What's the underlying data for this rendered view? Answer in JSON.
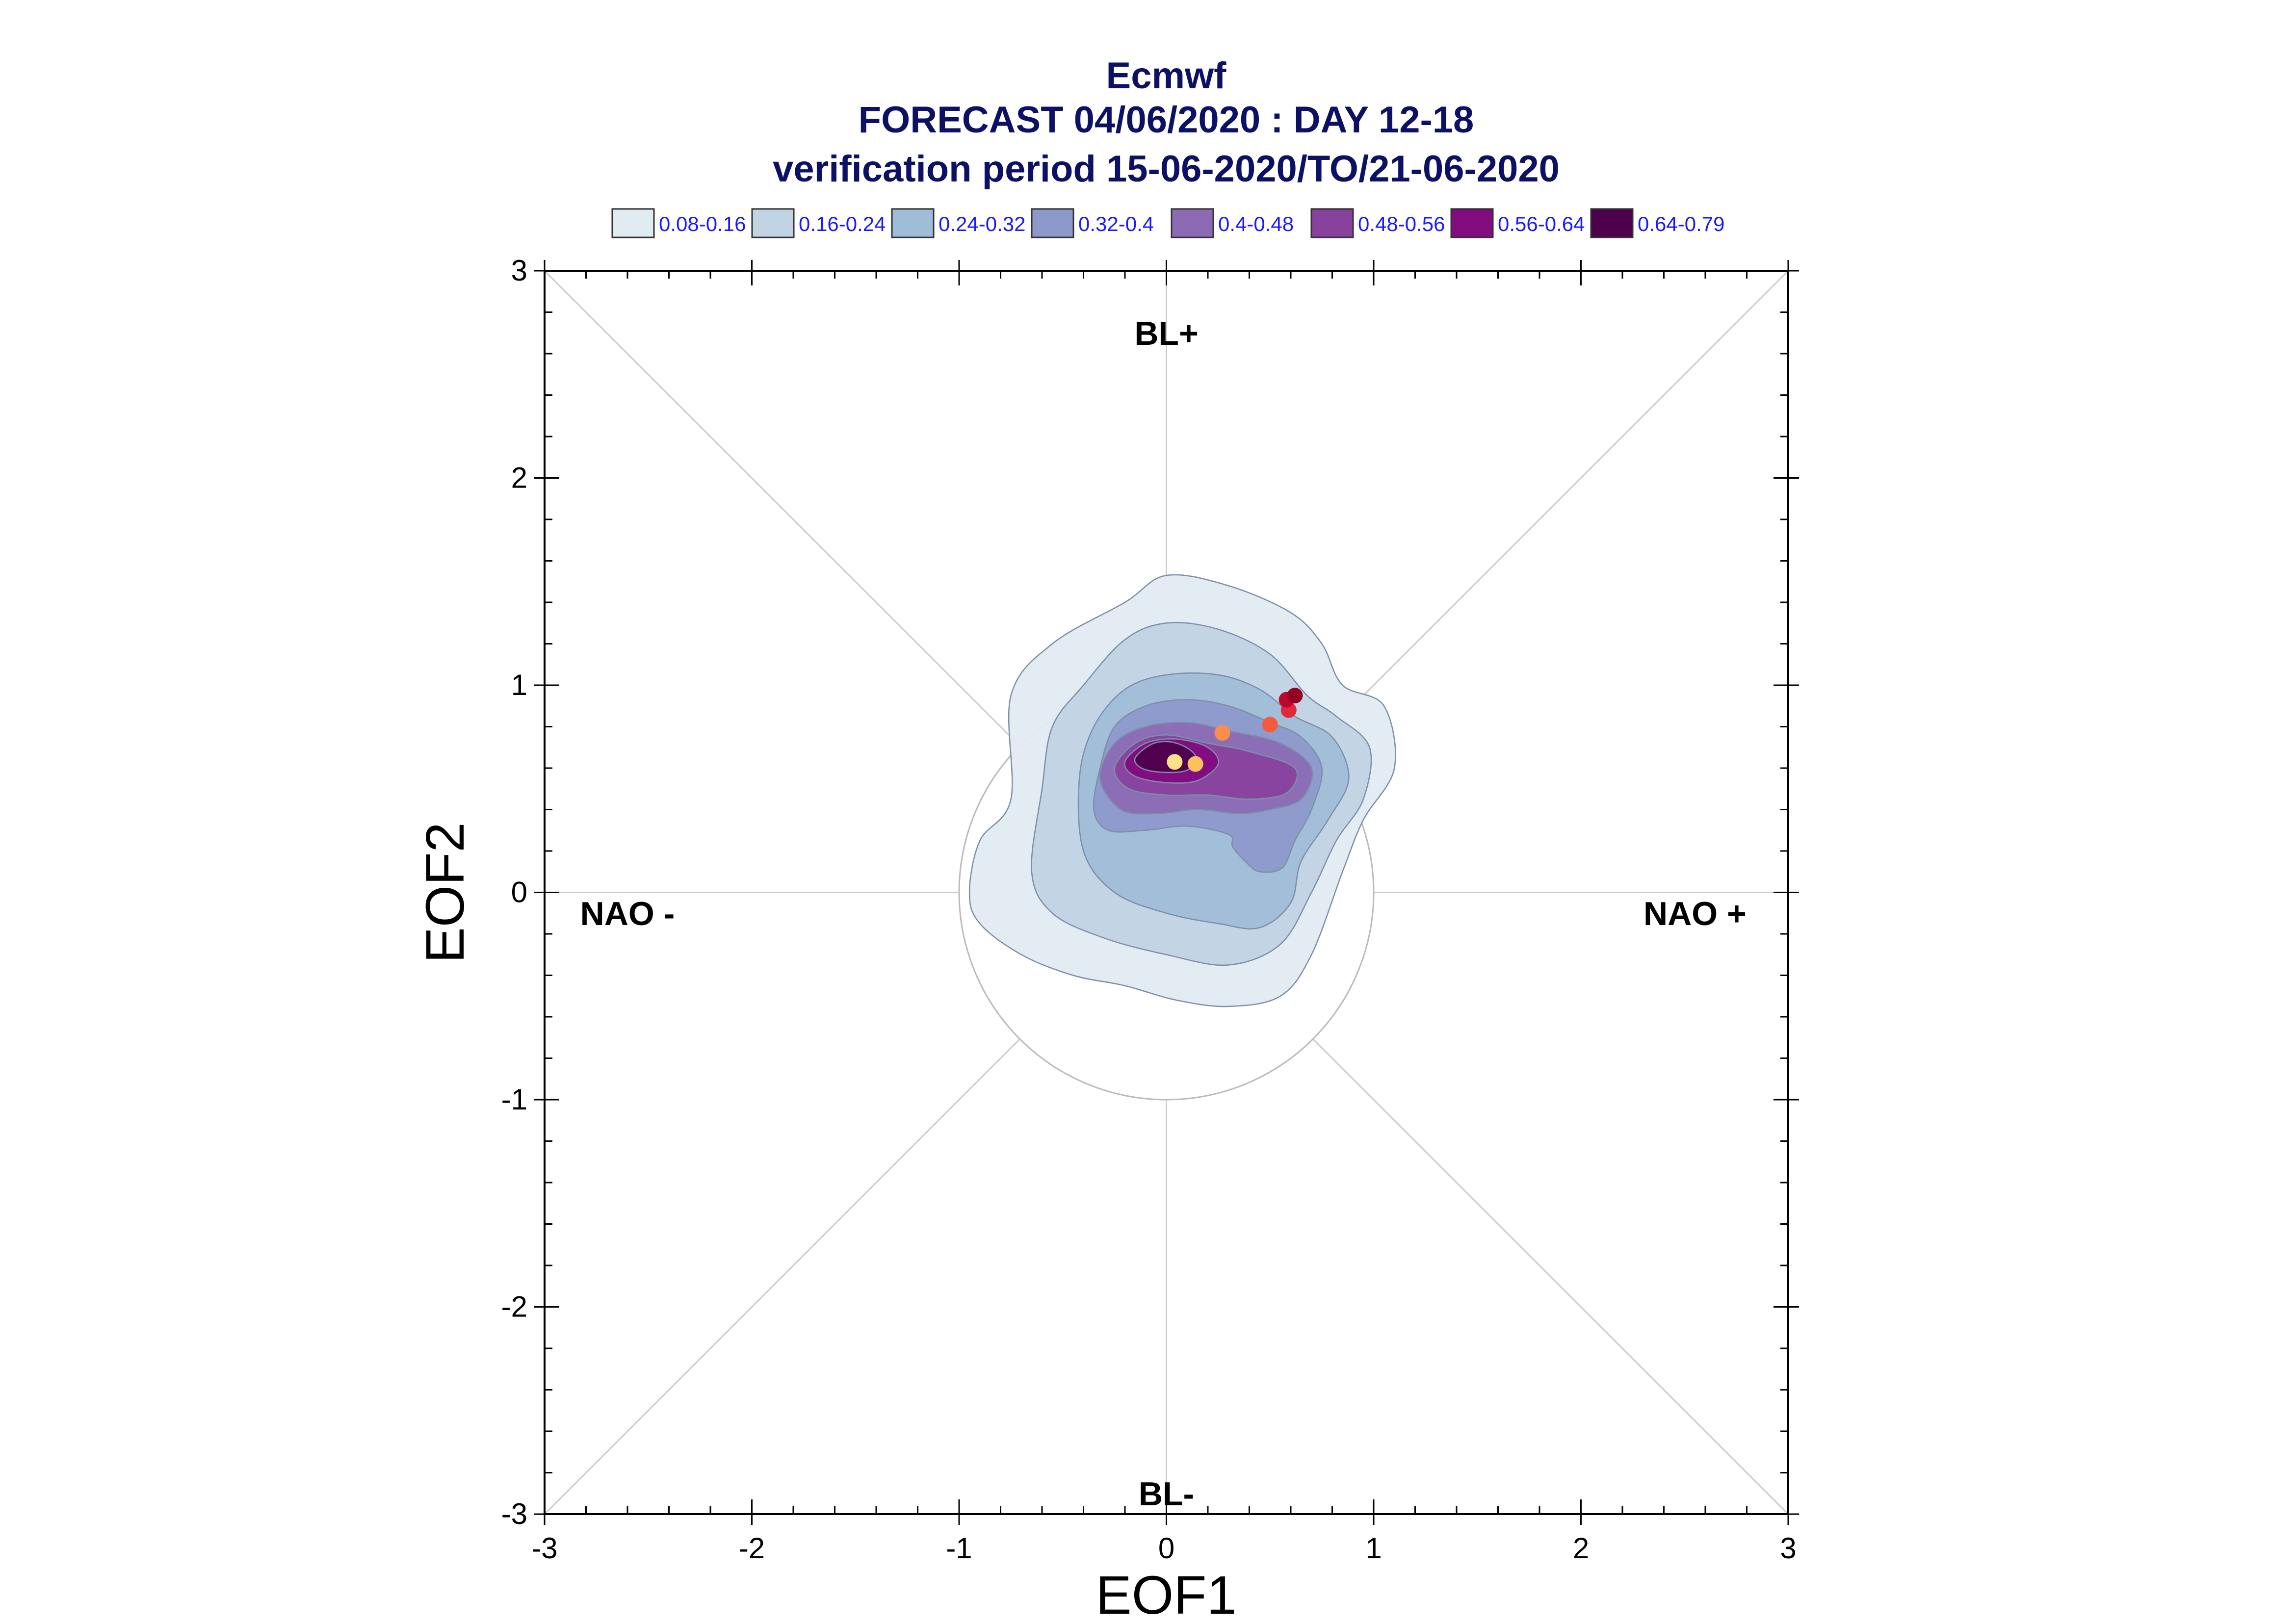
{
  "chart_data": {
    "type": "scatter",
    "title": [
      "Ecmwf",
      "FORECAST 04/06/2020 : DAY 12-18",
      "verification period 15-06-2020/TO/21-06-2020"
    ],
    "xlabel": "EOF1",
    "ylabel": "EOF2",
    "xlim": [
      -3,
      3
    ],
    "ylim": [
      -3,
      3
    ],
    "xticks": [
      "-3",
      "-2",
      "-1",
      "0",
      "1",
      "2",
      "3"
    ],
    "yticks": [
      "-3",
      "-2",
      "-1",
      "0",
      "1",
      "2",
      "3"
    ],
    "xtick_values": [
      -3,
      -2,
      -1,
      0,
      1,
      2,
      3
    ],
    "ytick_values": [
      -3,
      -2,
      -1,
      0,
      1,
      2,
      3
    ],
    "regime_labels": [
      {
        "text": "BL+",
        "x": 0.0,
        "y": 2.7
      },
      {
        "text": "BL-",
        "x": 0.0,
        "y": -2.9
      },
      {
        "text": "NAO -",
        "x": -2.6,
        "y": -0.1
      },
      {
        "text": "NAO +",
        "x": 2.55,
        "y": -0.1
      }
    ],
    "reference_circle_radius": 1.0,
    "legend": [
      {
        "label": "0.08-0.16",
        "color": "#e1ebf2"
      },
      {
        "label": "0.16-0.24",
        "color": "#c1d4e3"
      },
      {
        "label": "0.24-0.32",
        "color": "#a0bdd8"
      },
      {
        "label": "0.32-0.4",
        "color": "#8d99cb"
      },
      {
        "label": "0.4-0.48",
        "color": "#8c6bb4"
      },
      {
        "label": "0.48-0.56",
        "color": "#88419d"
      },
      {
        "label": "0.56-0.64",
        "color": "#820b7f"
      },
      {
        "label": "0.64-0.79",
        "color": "#4d004b"
      }
    ],
    "density_contours": [
      {
        "level": "0.08-0.16",
        "color": "#e1ebf2",
        "points": [
          [
            -0.95,
            0.0
          ],
          [
            -0.9,
            0.25
          ],
          [
            -0.75,
            0.45
          ],
          [
            -0.75,
            0.95
          ],
          [
            -0.55,
            1.2
          ],
          [
            -0.2,
            1.4
          ],
          [
            0.0,
            1.53
          ],
          [
            0.3,
            1.48
          ],
          [
            0.6,
            1.35
          ],
          [
            0.75,
            1.2
          ],
          [
            0.85,
            1.0
          ],
          [
            1.05,
            0.9
          ],
          [
            1.1,
            0.6
          ],
          [
            0.95,
            0.35
          ],
          [
            0.85,
            0.1
          ],
          [
            0.7,
            -0.3
          ],
          [
            0.55,
            -0.5
          ],
          [
            0.3,
            -0.55
          ],
          [
            0.05,
            -0.52
          ],
          [
            -0.2,
            -0.45
          ],
          [
            -0.45,
            -0.4
          ],
          [
            -0.7,
            -0.3
          ],
          [
            -0.9,
            -0.15
          ]
        ]
      },
      {
        "level": "0.16-0.24",
        "color": "#c1d4e3",
        "points": [
          [
            -0.65,
            0.1
          ],
          [
            -0.6,
            0.5
          ],
          [
            -0.55,
            0.8
          ],
          [
            -0.4,
            1.0
          ],
          [
            -0.2,
            1.22
          ],
          [
            0.0,
            1.3
          ],
          [
            0.25,
            1.27
          ],
          [
            0.5,
            1.15
          ],
          [
            0.68,
            0.95
          ],
          [
            0.82,
            0.85
          ],
          [
            0.98,
            0.7
          ],
          [
            0.95,
            0.45
          ],
          [
            0.82,
            0.25
          ],
          [
            0.7,
            0.0
          ],
          [
            0.55,
            -0.25
          ],
          [
            0.3,
            -0.35
          ],
          [
            0.0,
            -0.3
          ],
          [
            -0.3,
            -0.22
          ],
          [
            -0.55,
            -0.1
          ]
        ]
      },
      {
        "level": "0.24-0.32",
        "color": "#a0bdd8",
        "points": [
          [
            -0.4,
            0.2
          ],
          [
            -0.42,
            0.55
          ],
          [
            -0.35,
            0.8
          ],
          [
            -0.2,
            0.98
          ],
          [
            0.0,
            1.05
          ],
          [
            0.25,
            1.05
          ],
          [
            0.45,
            0.98
          ],
          [
            0.62,
            0.85
          ],
          [
            0.8,
            0.75
          ],
          [
            0.88,
            0.55
          ],
          [
            0.78,
            0.35
          ],
          [
            0.65,
            0.15
          ],
          [
            0.6,
            -0.05
          ],
          [
            0.45,
            -0.17
          ],
          [
            0.25,
            -0.15
          ],
          [
            0.0,
            -0.1
          ],
          [
            -0.25,
            0.0
          ]
        ]
      },
      {
        "level": "0.32-0.4",
        "color": "#8d99cb",
        "points": [
          [
            -0.35,
            0.4
          ],
          [
            -0.32,
            0.6
          ],
          [
            -0.25,
            0.8
          ],
          [
            -0.1,
            0.9
          ],
          [
            0.1,
            0.93
          ],
          [
            0.3,
            0.9
          ],
          [
            0.5,
            0.82
          ],
          [
            0.65,
            0.75
          ],
          [
            0.75,
            0.6
          ],
          [
            0.7,
            0.4
          ],
          [
            0.62,
            0.25
          ],
          [
            0.56,
            0.12
          ],
          [
            0.45,
            0.1
          ],
          [
            0.38,
            0.15
          ],
          [
            0.32,
            0.22
          ],
          [
            0.3,
            0.28
          ],
          [
            0.1,
            0.32
          ],
          [
            -0.1,
            0.3
          ],
          [
            -0.28,
            0.3
          ]
        ]
      },
      {
        "level": "0.4-0.48",
        "color": "#8c6bb4",
        "points": [
          [
            -0.32,
            0.55
          ],
          [
            -0.25,
            0.72
          ],
          [
            -0.1,
            0.8
          ],
          [
            0.1,
            0.82
          ],
          [
            0.3,
            0.78
          ],
          [
            0.55,
            0.72
          ],
          [
            0.7,
            0.6
          ],
          [
            0.65,
            0.45
          ],
          [
            0.5,
            0.4
          ],
          [
            0.35,
            0.38
          ],
          [
            0.15,
            0.4
          ],
          [
            -0.05,
            0.38
          ],
          [
            -0.22,
            0.4
          ]
        ]
      },
      {
        "level": "0.48-0.56",
        "color": "#88419d",
        "points": [
          [
            -0.25,
            0.6
          ],
          [
            -0.15,
            0.72
          ],
          [
            0.0,
            0.76
          ],
          [
            0.2,
            0.72
          ],
          [
            0.4,
            0.68
          ],
          [
            0.62,
            0.6
          ],
          [
            0.58,
            0.48
          ],
          [
            0.4,
            0.45
          ],
          [
            0.2,
            0.47
          ],
          [
            0.0,
            0.47
          ],
          [
            -0.18,
            0.5
          ]
        ]
      },
      {
        "level": "0.56-0.64",
        "color": "#820b7f",
        "points": [
          [
            -0.2,
            0.63
          ],
          [
            -0.1,
            0.72
          ],
          [
            0.05,
            0.74
          ],
          [
            0.2,
            0.7
          ],
          [
            0.25,
            0.62
          ],
          [
            0.15,
            0.54
          ],
          [
            0.0,
            0.53
          ],
          [
            -0.15,
            0.56
          ]
        ]
      },
      {
        "level": "0.64-0.79",
        "color": "#4d004b",
        "points": [
          [
            -0.15,
            0.65
          ],
          [
            -0.06,
            0.72
          ],
          [
            0.05,
            0.72
          ],
          [
            0.14,
            0.66
          ],
          [
            0.1,
            0.59
          ],
          [
            -0.02,
            0.58
          ],
          [
            -0.12,
            0.6
          ]
        ]
      }
    ],
    "points": [
      {
        "x": 0.04,
        "y": 0.63,
        "color": "#fde08a"
      },
      {
        "x": 0.14,
        "y": 0.62,
        "color": "#fcc15e"
      },
      {
        "x": 0.27,
        "y": 0.77,
        "color": "#fc8e4b"
      },
      {
        "x": 0.5,
        "y": 0.81,
        "color": "#f45a3c"
      },
      {
        "x": 0.59,
        "y": 0.88,
        "color": "#e02a39"
      },
      {
        "x": 0.58,
        "y": 0.93,
        "color": "#c0052f"
      },
      {
        "x": 0.62,
        "y": 0.95,
        "color": "#940022"
      }
    ]
  }
}
